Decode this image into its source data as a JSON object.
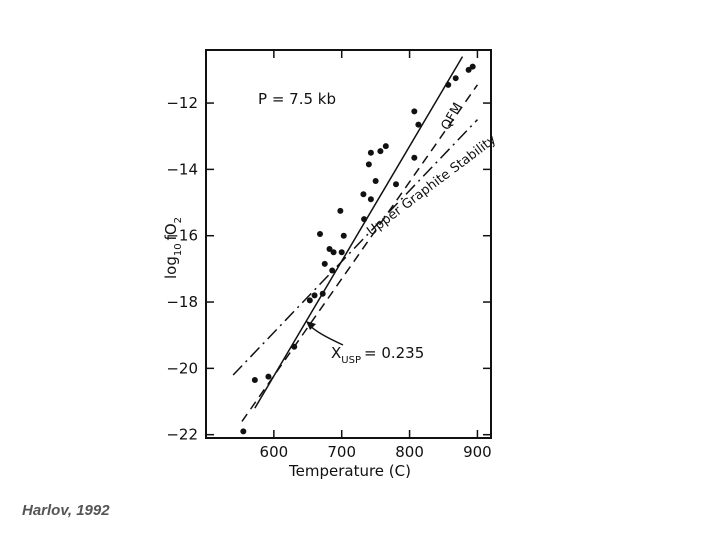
{
  "chart_data": {
    "type": "scatter",
    "title": "",
    "xlabel": "Temperature (C)",
    "ylabel": "log10 fO2",
    "ylabel_parts": {
      "base": "log",
      "base_sub": "10",
      "quantity": "fO",
      "quantity_sub": "2"
    },
    "xlim": [
      500,
      920
    ],
    "ylim": [
      -22.1,
      -10.4
    ],
    "x_ticks": [
      600,
      700,
      800,
      900
    ],
    "x_tick_labels": [
      "600",
      "700",
      "800",
      "900"
    ],
    "y_ticks": [
      -12,
      -14,
      -16,
      -18,
      -20,
      -22
    ],
    "y_tick_labels": [
      "-12",
      "-14",
      "-16",
      "-18",
      "-20",
      "-22"
    ],
    "grid": false,
    "annotations": {
      "pressure": "P = 7.5 kb",
      "qfm": "QFM",
      "graphite": "Upper Graphite Stability",
      "xusp_main": "X",
      "xusp_sub": "USP",
      "xusp_value": "= 0.235"
    },
    "points": [
      {
        "x": 555,
        "y": -21.9
      },
      {
        "x": 572,
        "y": -20.35
      },
      {
        "x": 592,
        "y": -20.25
      },
      {
        "x": 630,
        "y": -19.35
      },
      {
        "x": 653,
        "y": -17.95
      },
      {
        "x": 660,
        "y": -17.8
      },
      {
        "x": 668,
        "y": -15.95
      },
      {
        "x": 672,
        "y": -17.75
      },
      {
        "x": 675,
        "y": -16.85
      },
      {
        "x": 682,
        "y": -16.4
      },
      {
        "x": 686,
        "y": -17.05
      },
      {
        "x": 688,
        "y": -16.5
      },
      {
        "x": 698,
        "y": -15.25
      },
      {
        "x": 700,
        "y": -16.5
      },
      {
        "x": 703,
        "y": -16.0
      },
      {
        "x": 732,
        "y": -14.75
      },
      {
        "x": 733,
        "y": -15.5
      },
      {
        "x": 740,
        "y": -13.85
      },
      {
        "x": 743,
        "y": -13.5
      },
      {
        "x": 743,
        "y": -14.9
      },
      {
        "x": 750,
        "y": -14.35
      },
      {
        "x": 757,
        "y": -13.45
      },
      {
        "x": 765,
        "y": -13.3
      },
      {
        "x": 780,
        "y": -14.45
      },
      {
        "x": 807,
        "y": -12.25
      },
      {
        "x": 807,
        "y": -13.65
      },
      {
        "x": 813,
        "y": -12.65
      },
      {
        "x": 857,
        "y": -11.45
      },
      {
        "x": 868,
        "y": -11.25
      },
      {
        "x": 887,
        "y": -11.0
      },
      {
        "x": 893,
        "y": -10.9
      }
    ],
    "lines": [
      {
        "name": "X_USP = 0.235",
        "style": "solid",
        "x": [
          572,
          878
        ],
        "y": [
          -21.2,
          -10.6
        ]
      },
      {
        "name": "QFM",
        "style": "dashed",
        "x": [
          553,
          900
        ],
        "y": [
          -21.6,
          -11.45
        ]
      },
      {
        "name": "Upper Graphite Stability",
        "style": "dashdot",
        "x": [
          540,
          900
        ],
        "y": [
          -20.2,
          -12.5
        ]
      }
    ]
  },
  "credit": "Harlov, 1992"
}
